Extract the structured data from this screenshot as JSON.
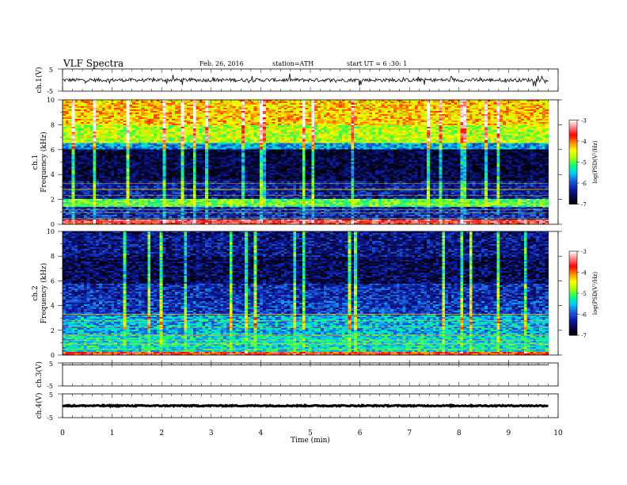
{
  "header": {
    "title": "VLF Spectra",
    "date": "Feb. 26, 2016",
    "station": "station=ATH",
    "start": "start UT = 6 :30: 1"
  },
  "colors": {
    "background": "#ffffff",
    "axis": "#000000",
    "colormap": [
      "#000000",
      "#08084a",
      "#0a1ea8",
      "#1e5ad8",
      "#00c8ff",
      "#00ff80",
      "#a0ff00",
      "#ffff00",
      "#ff9000",
      "#ff0000",
      "#ff8080",
      "#ffffff"
    ]
  },
  "chart_data": [
    {
      "type": "line",
      "id": "ch1-waveform",
      "ylabel": "ch.1(V)",
      "ylim": [
        -5,
        5
      ],
      "yticks": [
        "5",
        "-5"
      ],
      "xlim": [
        0,
        10
      ],
      "series": [
        {
          "baseline": 0,
          "noise_amplitude": 0.8,
          "spike_amplitude": 2.5
        }
      ]
    },
    {
      "type": "heatmap",
      "id": "ch1-spectrogram",
      "ylabel": "ch.1\nFrequency (kHz)",
      "ylim": [
        0,
        10
      ],
      "yticks": [
        "0",
        "2",
        "4",
        "6",
        "8",
        "10"
      ],
      "xlim": [
        0,
        9.8
      ],
      "colorbar": {
        "label": "log(PSD(V²/Hz)",
        "range": [
          -7,
          -3
        ],
        "ticks": [
          "-3",
          "-4",
          "-5",
          "-6",
          "-7"
        ]
      },
      "bands": [
        {
          "f_min": 0,
          "f_max": 0.4,
          "log_psd": -3.6
        },
        {
          "f_min": 0.4,
          "f_max": 1.4,
          "log_psd": -6.2
        },
        {
          "f_min": 1.4,
          "f_max": 2.0,
          "log_psd": -5.0
        },
        {
          "f_min": 2.0,
          "f_max": 3.5,
          "log_psd": -6.3
        },
        {
          "f_min": 3.5,
          "f_max": 6.0,
          "log_psd": -6.7
        },
        {
          "f_min": 6.0,
          "f_max": 6.6,
          "log_psd": -5.7
        },
        {
          "f_min": 6.6,
          "f_max": 8.0,
          "log_psd": -4.7
        },
        {
          "f_min": 8.0,
          "f_max": 10.0,
          "log_psd": -4.3
        }
      ]
    },
    {
      "type": "heatmap",
      "id": "ch2-spectrogram",
      "ylabel": "ch.2\nFrequency (kHz)",
      "ylim": [
        0,
        10
      ],
      "yticks": [
        "0",
        "2",
        "4",
        "6",
        "8",
        "10"
      ],
      "xlim": [
        0,
        9.8
      ],
      "colorbar": {
        "label": "log(PSD(V²/Hz)",
        "range": [
          -7,
          -3
        ],
        "ticks": [
          "-3",
          "-4",
          "-5",
          "-6",
          "-7"
        ]
      },
      "bands": [
        {
          "f_min": 0,
          "f_max": 0.3,
          "log_psd": -3.8
        },
        {
          "f_min": 0.3,
          "f_max": 1.6,
          "log_psd": -5.4
        },
        {
          "f_min": 1.6,
          "f_max": 3.2,
          "log_psd": -5.6
        },
        {
          "f_min": 3.2,
          "f_max": 4.4,
          "log_psd": -6.1
        },
        {
          "f_min": 4.4,
          "f_max": 5.8,
          "log_psd": -6.2
        },
        {
          "f_min": 5.8,
          "f_max": 8.0,
          "log_psd": -6.6
        },
        {
          "f_min": 8.0,
          "f_max": 10.0,
          "log_psd": -6.4
        }
      ]
    },
    {
      "type": "line",
      "id": "ch3-waveform",
      "ylabel": "ch.3(V)",
      "ylim": [
        -5,
        5
      ],
      "yticks": [
        "5",
        "-5"
      ],
      "xlim": [
        0,
        10
      ],
      "series": [
        {
          "baseline": 4.2,
          "noise_amplitude": 0.05,
          "spike_amplitude": 0
        }
      ]
    },
    {
      "type": "line",
      "id": "ch4-waveform",
      "ylabel": "ch.4(V)",
      "ylim": [
        -5,
        5
      ],
      "yticks": [
        "5",
        "-5"
      ],
      "xlim": [
        0,
        10
      ],
      "xlabel": "Time (min)",
      "xticks": [
        "0",
        "1",
        "2",
        "3",
        "4",
        "5",
        "6",
        "7",
        "8",
        "9",
        "10"
      ],
      "series": [
        {
          "baseline": 0,
          "noise_amplitude": 0.25,
          "spike_amplitude": 0
        }
      ]
    }
  ]
}
